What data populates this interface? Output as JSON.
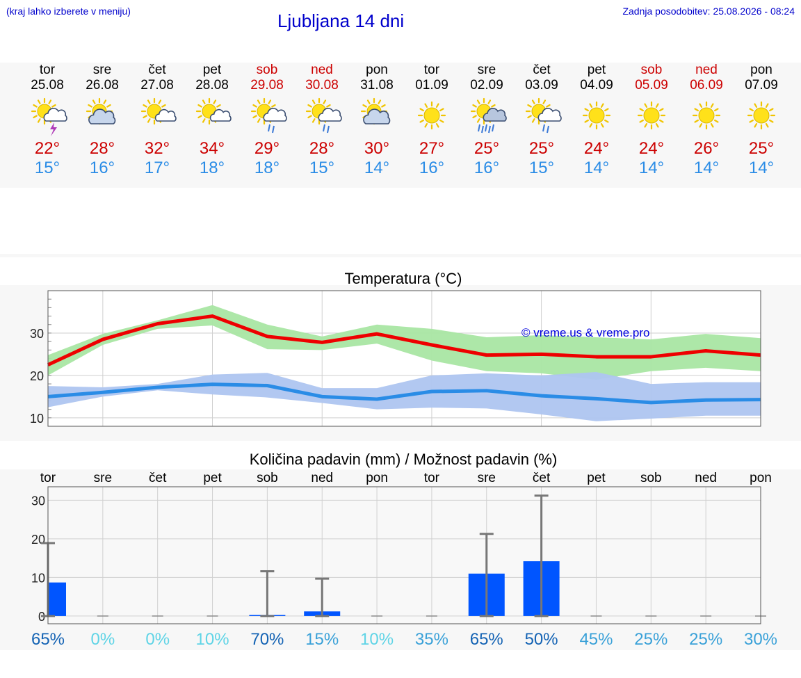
{
  "header": {
    "hint": "(kraj lahko izberete v meniju)",
    "title": "Ljubljana 14 dni",
    "updated_label": "Zadnja posodobitev:",
    "updated_value": "25.08.2026 - 08:24"
  },
  "colors": {
    "weekend": "#cc0000",
    "tmax": "#cc0000",
    "tmin": "#2a8ce6",
    "link": "#0000cc",
    "bar": "#0055ff"
  },
  "days": [
    {
      "name": "tor",
      "date": "25.08",
      "weekend": false,
      "icon": "sun-cloud-thunder-icon",
      "max": "22°",
      "min": "15°"
    },
    {
      "name": "sre",
      "date": "26.08",
      "weekend": false,
      "icon": "sun-cloud-icon",
      "max": "28°",
      "min": "16°"
    },
    {
      "name": "čet",
      "date": "27.08",
      "weekend": false,
      "icon": "sun-small-cloud-icon",
      "max": "32°",
      "min": "17°"
    },
    {
      "name": "pet",
      "date": "28.08",
      "weekend": false,
      "icon": "sun-small-cloud-icon",
      "max": "34°",
      "min": "18°"
    },
    {
      "name": "sob",
      "date": "29.08",
      "weekend": true,
      "icon": "sun-cloud-rain-icon",
      "max": "29°",
      "min": "18°"
    },
    {
      "name": "ned",
      "date": "30.08",
      "weekend": true,
      "icon": "sun-cloud-rain-icon",
      "max": "28°",
      "min": "15°"
    },
    {
      "name": "pon",
      "date": "31.08",
      "weekend": false,
      "icon": "sun-cloud-icon",
      "max": "30°",
      "min": "14°"
    },
    {
      "name": "tor",
      "date": "01.09",
      "weekend": false,
      "icon": "sun-icon",
      "max": "27°",
      "min": "16°"
    },
    {
      "name": "sre",
      "date": "02.09",
      "weekend": false,
      "icon": "sun-cloud-heavy-rain-icon",
      "max": "25°",
      "min": "16°"
    },
    {
      "name": "čet",
      "date": "03.09",
      "weekend": false,
      "icon": "sun-cloud-rain-icon",
      "max": "25°",
      "min": "15°"
    },
    {
      "name": "pet",
      "date": "04.09",
      "weekend": false,
      "icon": "sun-icon",
      "max": "24°",
      "min": "14°"
    },
    {
      "name": "sob",
      "date": "05.09",
      "weekend": true,
      "icon": "sun-icon",
      "max": "24°",
      "min": "14°"
    },
    {
      "name": "ned",
      "date": "06.09",
      "weekend": true,
      "icon": "sun-icon",
      "max": "26°",
      "min": "14°"
    },
    {
      "name": "pon",
      "date": "07.09",
      "weekend": false,
      "icon": "sun-icon",
      "max": "25°",
      "min": "14°"
    }
  ],
  "chart_data": [
    {
      "type": "line",
      "title": "Temperatura (°C)",
      "watermark": "© vreme.us & vreme.pro",
      "xlabel": "",
      "ylabel": "",
      "ylim": [
        8,
        40
      ],
      "yticks": [
        10,
        20,
        30
      ],
      "grid": true,
      "legend": "none",
      "x": [
        "25.08",
        "26.08",
        "27.08",
        "28.08",
        "29.08",
        "30.08",
        "31.08",
        "01.09",
        "02.09",
        "03.09",
        "04.09",
        "05.09",
        "06.09",
        "07.09"
      ],
      "series": [
        {
          "color": "#ee0000",
          "values": [
            22.5,
            28.5,
            32.2,
            34.0,
            29.2,
            27.8,
            29.8,
            27.2,
            24.8,
            25.0,
            24.4,
            24.4,
            25.8,
            24.8
          ]
        },
        {
          "color": "#2a8ce6",
          "values": [
            15.0,
            16.0,
            17.2,
            17.9,
            17.6,
            15.0,
            14.4,
            16.2,
            16.4,
            15.2,
            14.5,
            13.6,
            14.2,
            14.3
          ]
        }
      ],
      "bands": [
        {
          "color": "#a9e6a3",
          "low": [
            20,
            27.2,
            31.0,
            31.8,
            26.2,
            26.0,
            27.5,
            23.5,
            21.0,
            20.5,
            19.0,
            21.0,
            21.8,
            21.0
          ],
          "high": [
            24.8,
            29.8,
            33.0,
            36.6,
            32.0,
            29.2,
            32.0,
            31.0,
            29.0,
            29.5,
            29.0,
            28.5,
            29.8,
            28.8
          ]
        },
        {
          "color": "#aec5f0",
          "low": [
            12.5,
            15.0,
            16.5,
            15.5,
            14.8,
            13.5,
            12.0,
            12.4,
            12.2,
            10.8,
            9.2,
            9.8,
            10.5,
            10.5
          ],
          "high": [
            17.5,
            17.2,
            18.0,
            20.2,
            20.6,
            17.0,
            17.0,
            20.0,
            20.5,
            20.0,
            20.8,
            18.0,
            18.4,
            18.4
          ]
        }
      ]
    },
    {
      "type": "bar",
      "title": "Količina padavin (mm) / Možnost padavin (%)",
      "xlabel": "",
      "ylabel": "",
      "ylim": [
        -2,
        33.5
      ],
      "yticks": [
        0,
        10,
        20,
        30
      ],
      "grid": true,
      "legend": "none",
      "categories": [
        "tor",
        "sre",
        "čet",
        "pet",
        "sob",
        "ned",
        "pon",
        "tor",
        "sre",
        "čet",
        "pet",
        "sob",
        "ned",
        "pon"
      ],
      "values": [
        8.7,
        0,
        0,
        0,
        0.3,
        1.2,
        0,
        0,
        11.0,
        14.2,
        0,
        0,
        0,
        0
      ],
      "error_max": [
        18.9,
        0,
        0,
        0,
        11.6,
        9.7,
        0,
        0,
        21.3,
        31.2,
        0,
        0,
        0,
        0
      ],
      "probability": [
        "65%",
        "0%",
        "0%",
        "10%",
        "70%",
        "15%",
        "10%",
        "35%",
        "65%",
        "50%",
        "45%",
        "25%",
        "25%",
        "30%"
      ],
      "probability_colors": [
        "#1463b4",
        "#5fd4e6",
        "#5fd4e6",
        "#5fd4e6",
        "#1463b4",
        "#3aa1d8",
        "#5fd4e6",
        "#3aa1d8",
        "#1463b4",
        "#1463b4",
        "#3aa1d8",
        "#3aa1d8",
        "#3aa1d8",
        "#3aa1d8"
      ]
    }
  ]
}
